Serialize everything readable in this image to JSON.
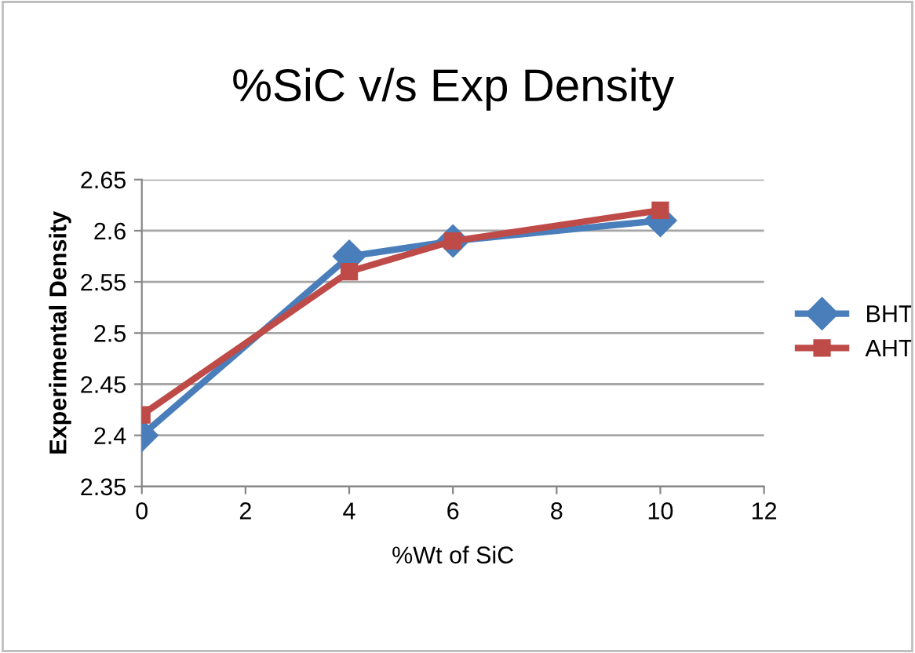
{
  "chart_data": {
    "type": "line",
    "title": "%SiC v/s Exp Density",
    "xlabel": "%Wt of SiC",
    "ylabel": "Experimental Density",
    "x": [
      0,
      4,
      6,
      10
    ],
    "series": [
      {
        "name": "BHT",
        "color": "#4a7ebb",
        "marker": "diamond",
        "values": [
          2.4,
          2.575,
          2.59,
          2.61
        ]
      },
      {
        "name": "AHT",
        "color": "#be4b48",
        "marker": "square",
        "values": [
          2.42,
          2.56,
          2.59,
          2.62
        ]
      }
    ],
    "xlim": [
      0,
      12
    ],
    "xticks": [
      0,
      2,
      4,
      6,
      8,
      10,
      12
    ],
    "ylim": [
      2.35,
      2.65
    ],
    "yticks": [
      {
        "value": 2.35,
        "label": "2.35"
      },
      {
        "value": 2.4,
        "label": "2.4"
      },
      {
        "value": 2.45,
        "label": "2.45"
      },
      {
        "value": 2.5,
        "label": "2.5"
      },
      {
        "value": 2.55,
        "label": "2.55"
      },
      {
        "value": 2.6,
        "label": "2.6"
      },
      {
        "value": 2.65,
        "label": "2.65"
      }
    ],
    "grid": "y",
    "legend": "right",
    "line_style": "solid"
  }
}
